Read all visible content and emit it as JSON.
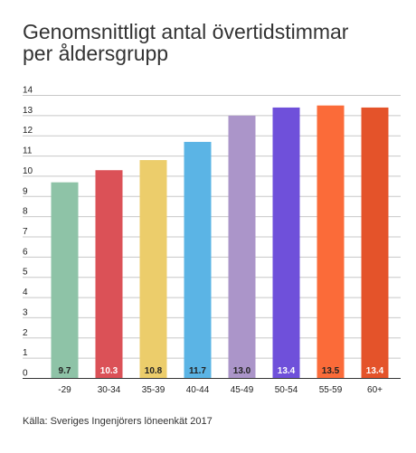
{
  "title_lines": [
    "Genomsnittligt antal övertidstimmar",
    "per åldersgrupp"
  ],
  "source": "Källa: Sveriges Ingenjörers löneenkät 2017",
  "chart_data": {
    "type": "bar",
    "title": "Genomsnittligt antal övertidstimmar per åldersgrupp",
    "xlabel": "",
    "ylabel": "",
    "ylim": [
      0,
      14
    ],
    "yticks": [
      0,
      1,
      2,
      3,
      4,
      5,
      6,
      7,
      8,
      9,
      10,
      11,
      12,
      13,
      14
    ],
    "grid": true,
    "categories": [
      "-29",
      "30-34",
      "35-39",
      "40-44",
      "45-49",
      "50-54",
      "55-59",
      "60+"
    ],
    "values": [
      9.7,
      10.3,
      10.8,
      11.7,
      13.0,
      13.4,
      13.5,
      13.4
    ],
    "data_labels": [
      "9.7",
      "10.3",
      "10.8",
      "11.7",
      "13.0",
      "13.4",
      "13.5",
      "13.4"
    ],
    "colors": [
      "#8ec3a7",
      "#db5157",
      "#eccd6b",
      "#5bb4e5",
      "#ab95c9",
      "#6f50da",
      "#fb6b39",
      "#e4532a"
    ],
    "label_colors": [
      "#222222",
      "#ffffff",
      "#222222",
      "#222222",
      "#222222",
      "#ffffff",
      "#222222",
      "#ffffff"
    ]
  }
}
